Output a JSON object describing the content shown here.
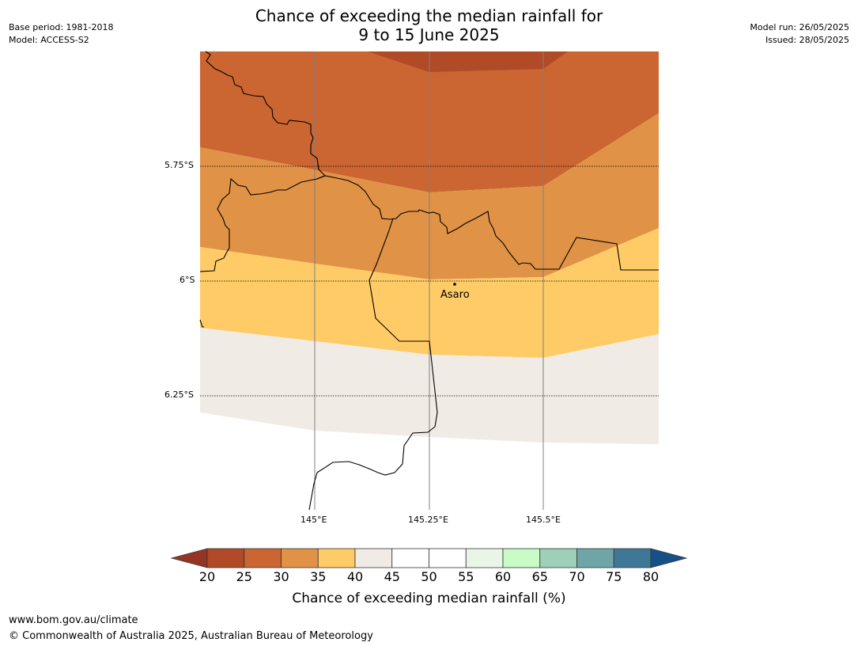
{
  "title": {
    "line1": "Chance of exceeding the median rainfall for",
    "line2": "9 to 15 June 2025"
  },
  "meta": {
    "base_period": "Base period: 1981-2018",
    "model": "Model: ACCESS-S2",
    "model_run": "Model run: 26/05/2025",
    "issued": "Issued: 28/05/2025"
  },
  "map": {
    "lat_labels": [
      "5.75°S",
      "6°S",
      "6.25°S"
    ],
    "lon_labels": [
      "145°E",
      "145.25°E",
      "145.5°E"
    ],
    "place": {
      "name": "Asaro"
    },
    "colors": {
      "20-25": "#b14a26",
      "25-30": "#cb6531",
      "30-35": "#e09246",
      "35-40": "#fecb66",
      "40-45": "#f0ebe5"
    }
  },
  "colorbar": {
    "title": "Chance of exceeding median rainfall (%)",
    "ticks": [
      "20",
      "25",
      "30",
      "35",
      "40",
      "45",
      "50",
      "55",
      "60",
      "65",
      "70",
      "75",
      "80"
    ],
    "colors": [
      "#b14a26",
      "#cb6531",
      "#e09246",
      "#fecb66",
      "#f0ebe5",
      "#ffffff",
      "#ffffff",
      "#e9f6e7",
      "#c8fbc6",
      "#9dcfb9",
      "#6ea5a7",
      "#3f7796"
    ],
    "under_color": "#953423",
    "over_color": "#175089"
  },
  "footer": {
    "url": "www.bom.gov.au/climate",
    "copyright": "© Commonwealth of Australia 2025, Australian Bureau of Meteorology"
  }
}
